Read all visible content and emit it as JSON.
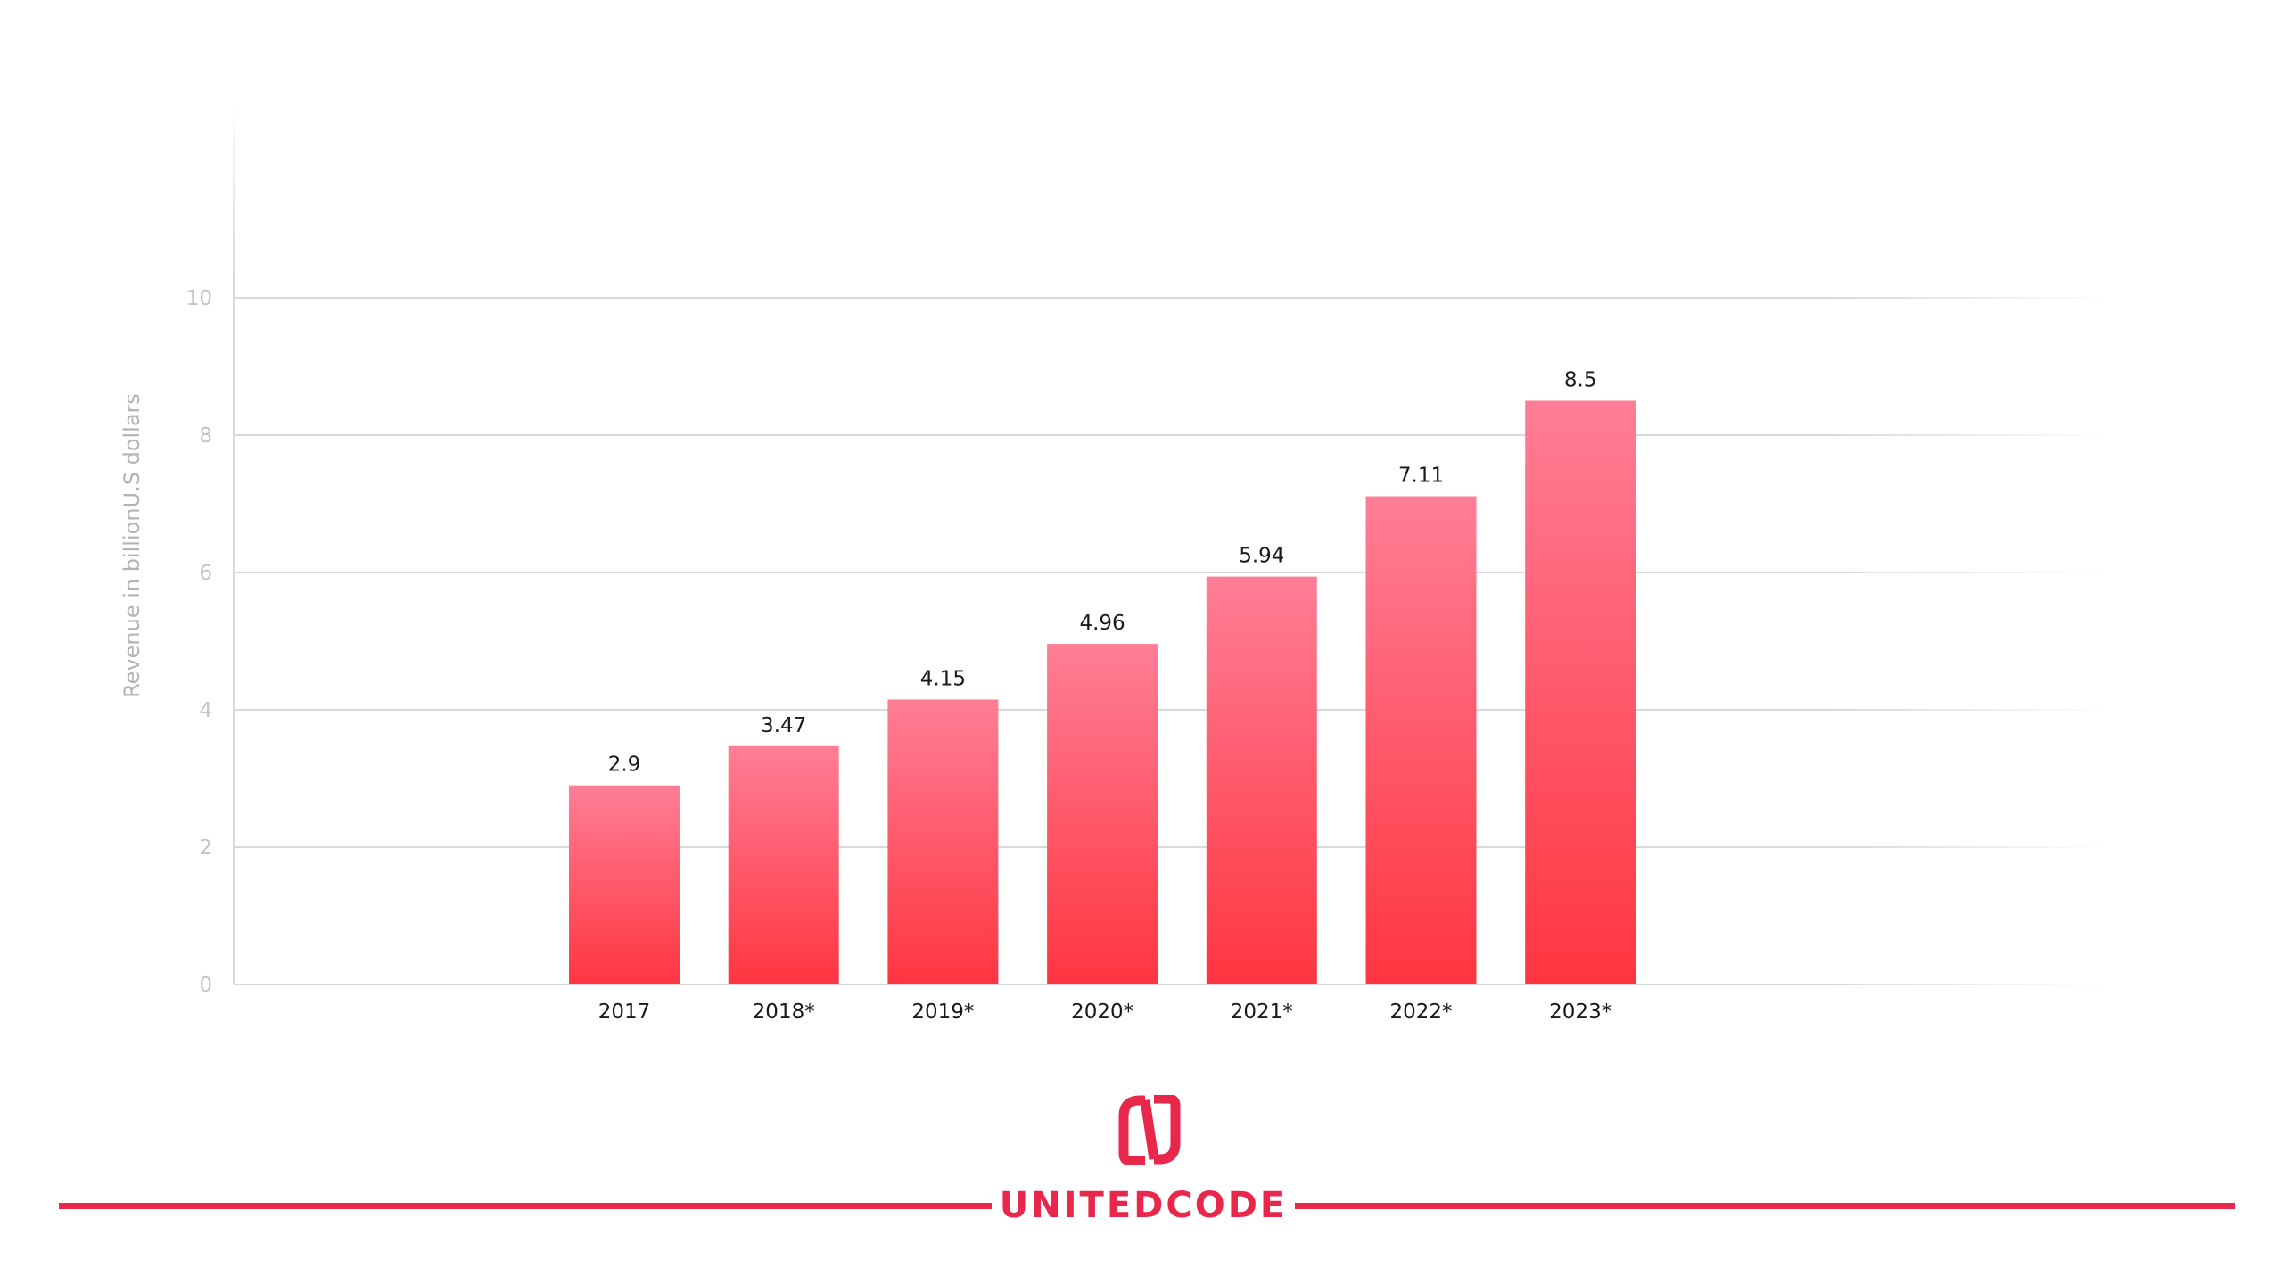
{
  "chart_data": {
    "type": "bar",
    "categories": [
      "2017",
      "2018*",
      "2019*",
      "2020*",
      "2021*",
      "2022*",
      "2023*"
    ],
    "values": [
      2.9,
      3.47,
      4.15,
      4.96,
      5.94,
      7.11,
      8.5
    ],
    "data_labels": [
      "2.9",
      "3.47",
      "4.15",
      "4.96",
      "5.94",
      "7.11",
      "8.5"
    ],
    "title": "",
    "xlabel": "",
    "ylabel": "Revenue in billionU.S dollars",
    "ylim": [
      0,
      10
    ],
    "yticks": [
      "0",
      "2",
      "4",
      "6",
      "8",
      "10"
    ],
    "grid": true,
    "legend": "none",
    "colors": {
      "bar_top": "#ff7e96",
      "bar_bottom": "#ff3540",
      "grid": "#d9d9d9",
      "tick_text": "#c4c4c4",
      "ylabel_text": "#b3b3b3",
      "label_text": "#1a1a1a"
    }
  },
  "brand": {
    "name": "UNITEDCODE",
    "color": "#e8274b",
    "logo_icon": "unitedcode-logo-icon"
  }
}
